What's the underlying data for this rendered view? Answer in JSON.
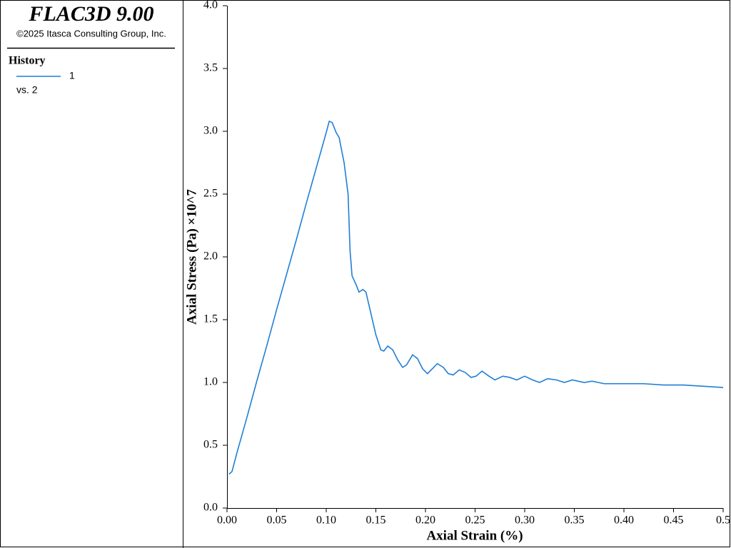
{
  "sidebar": {
    "title": "FLAC3D 9.00",
    "copyright": "©2025 Itasca Consulting Group, Inc.",
    "legend_title": "History",
    "legend_vs": "vs. 2"
  },
  "chart_data": {
    "type": "line",
    "xlabel": "Axial Strain (%)",
    "ylabel": "Axial Stress (Pa) ×10^7",
    "x": [
      0.002,
      0.005,
      0.01,
      0.02,
      0.03,
      0.04,
      0.05,
      0.06,
      0.07,
      0.08,
      0.09,
      0.1,
      0.103,
      0.106,
      0.11,
      0.113,
      0.118,
      0.122,
      0.124,
      0.126,
      0.13,
      0.133,
      0.137,
      0.14,
      0.145,
      0.15,
      0.155,
      0.158,
      0.162,
      0.167,
      0.172,
      0.177,
      0.181,
      0.187,
      0.192,
      0.197,
      0.202,
      0.207,
      0.212,
      0.218,
      0.223,
      0.228,
      0.234,
      0.24,
      0.246,
      0.251,
      0.257,
      0.264,
      0.27,
      0.278,
      0.285,
      0.292,
      0.3,
      0.308,
      0.315,
      0.323,
      0.332,
      0.34,
      0.348,
      0.36,
      0.368,
      0.38,
      0.4,
      0.42,
      0.44,
      0.46,
      0.48,
      0.5
    ],
    "series": [
      {
        "name": "1",
        "color": "#1f7fd6",
        "values": [
          0.27,
          0.29,
          0.44,
          0.72,
          1.01,
          1.29,
          1.58,
          1.86,
          2.14,
          2.43,
          2.71,
          2.99,
          3.08,
          3.07,
          2.99,
          2.95,
          2.75,
          2.5,
          2.05,
          1.85,
          1.78,
          1.72,
          1.74,
          1.72,
          1.55,
          1.38,
          1.26,
          1.25,
          1.29,
          1.26,
          1.18,
          1.12,
          1.14,
          1.22,
          1.19,
          1.11,
          1.07,
          1.11,
          1.15,
          1.12,
          1.07,
          1.06,
          1.1,
          1.08,
          1.04,
          1.05,
          1.09,
          1.05,
          1.02,
          1.05,
          1.04,
          1.02,
          1.05,
          1.02,
          1.0,
          1.03,
          1.02,
          1.0,
          1.02,
          1.0,
          1.01,
          0.99,
          0.99,
          0.99,
          0.98,
          0.98,
          0.97,
          0.96
        ]
      }
    ],
    "xlim": [
      0,
      0.5
    ],
    "xticks": [
      {
        "value": 0,
        "label": "0.00"
      },
      0.05,
      {
        "value": 0.1,
        "label": "0.10"
      },
      0.15,
      {
        "value": 0.2,
        "label": "0.20"
      },
      0.25,
      {
        "value": 0.3,
        "label": "0.30"
      },
      0.35,
      {
        "value": 0.4,
        "label": "0.40"
      },
      0.45,
      0.5
    ],
    "ylim": [
      0,
      4
    ],
    "yticks": [
      {
        "value": 0,
        "label": "0.0"
      },
      0.5,
      {
        "value": 1,
        "label": "1.0"
      },
      1.5,
      {
        "value": 2,
        "label": "2.0"
      },
      2.5,
      {
        "value": 3,
        "label": "3.0"
      },
      3.5,
      {
        "value": 4,
        "label": "4.0"
      }
    ]
  }
}
